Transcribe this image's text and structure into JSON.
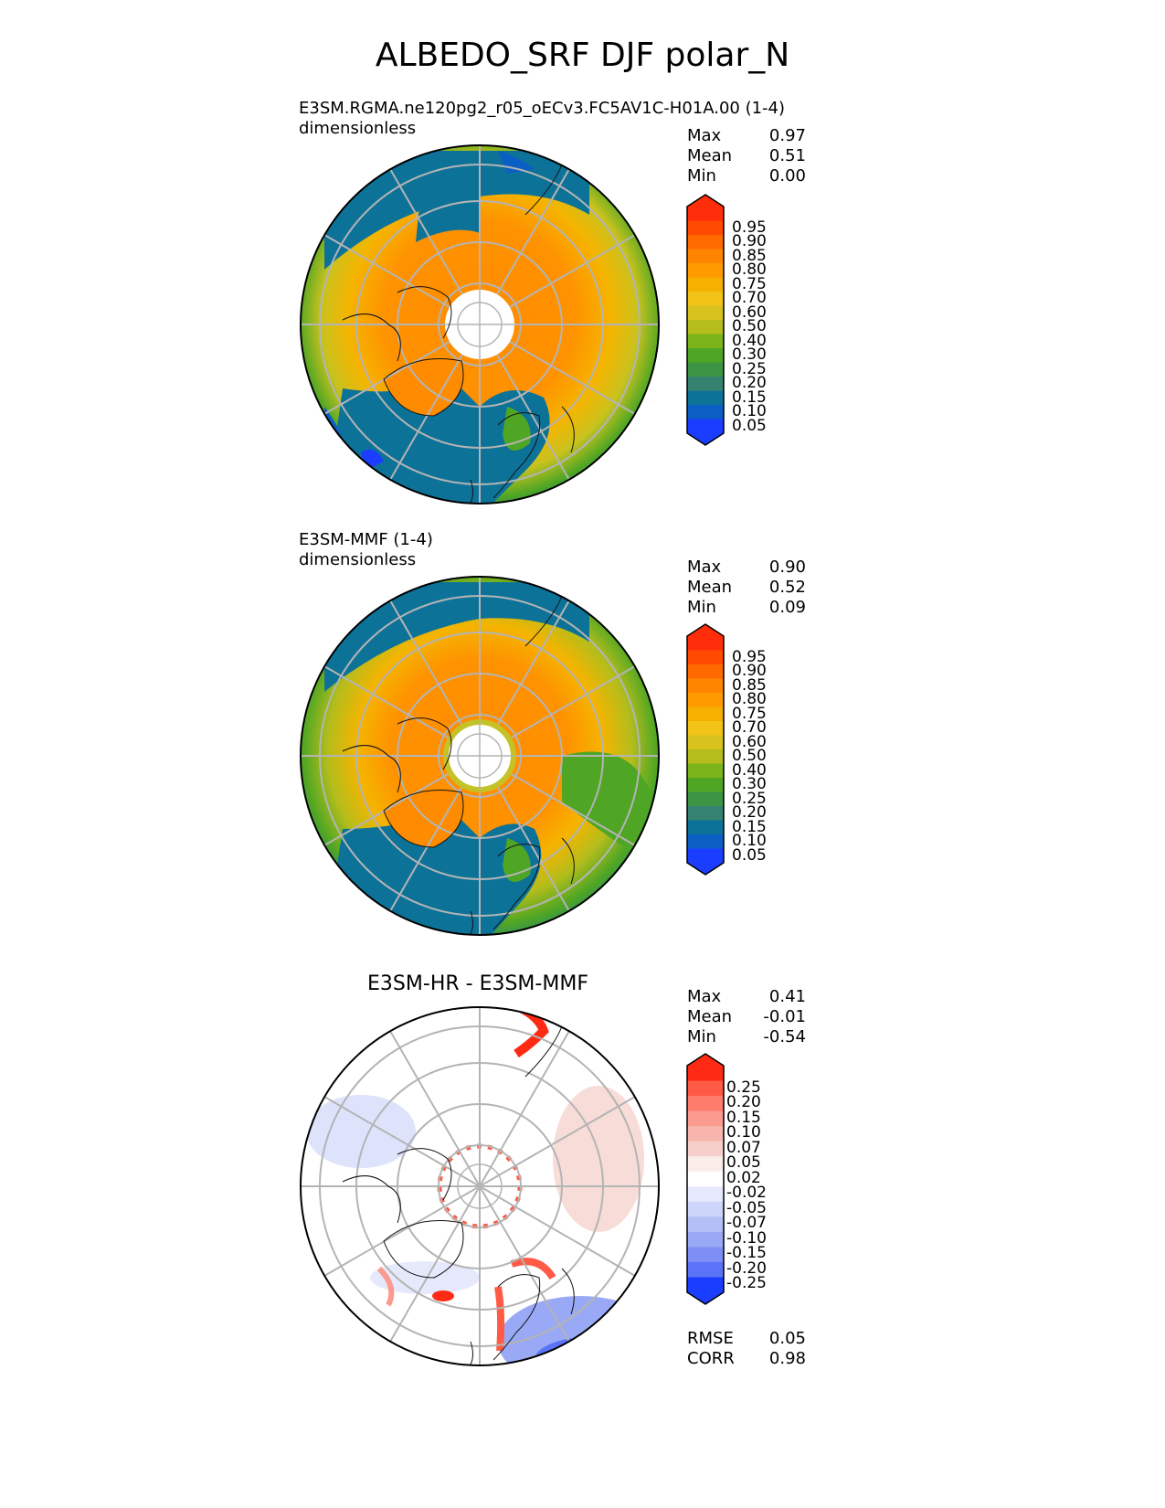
{
  "title": "ALBEDO_SRF DJF polar_N",
  "panels": [
    {
      "id": "test",
      "title_line1": "E3SM.RGMA.ne120pg2_r05_oECv3.FC5AV1C-H01A.00 (1-4)",
      "title_line2": "dimensionless",
      "stats": [
        {
          "label": "Max",
          "value": "0.97"
        },
        {
          "label": "Mean",
          "value": "0.51"
        },
        {
          "label": "Min",
          "value": "0.00"
        }
      ],
      "colorbar": {
        "labels": [
          "0.95",
          "0.90",
          "0.85",
          "0.80",
          "0.75",
          "0.70",
          "0.60",
          "0.50",
          "0.40",
          "0.30",
          "0.25",
          "0.20",
          "0.15",
          "0.10",
          "0.05"
        ],
        "colors": [
          "#ff2d0a",
          "#ff4a00",
          "#ff6a00",
          "#ff8500",
          "#ff9a00",
          "#f5b000",
          "#f2c418",
          "#d8c31e",
          "#b4bd1c",
          "#7cb41c",
          "#4fa624",
          "#3d9445",
          "#368271",
          "#0d7298",
          "#0b5fc4",
          "#1b3dff"
        ],
        "top_color": "#ff2d0a",
        "bottom_color": "#1b3dff"
      }
    },
    {
      "id": "ref",
      "title_line1": "E3SM-MMF (1-4)",
      "title_line2": "dimensionless",
      "stats": [
        {
          "label": "Max",
          "value": "0.90"
        },
        {
          "label": "Mean",
          "value": "0.52"
        },
        {
          "label": "Min",
          "value": "0.09"
        }
      ],
      "colorbar": {
        "labels": [
          "0.95",
          "0.90",
          "0.85",
          "0.80",
          "0.75",
          "0.70",
          "0.60",
          "0.50",
          "0.40",
          "0.30",
          "0.25",
          "0.20",
          "0.15",
          "0.10",
          "0.05"
        ],
        "colors": [
          "#ff2d0a",
          "#ff4a00",
          "#ff6a00",
          "#ff8500",
          "#ff9a00",
          "#f5b000",
          "#f2c418",
          "#d8c31e",
          "#b4bd1c",
          "#7cb41c",
          "#4fa624",
          "#3d9445",
          "#368271",
          "#0d7298",
          "#0b5fc4",
          "#1b3dff"
        ],
        "top_color": "#ff2d0a",
        "bottom_color": "#1b3dff"
      }
    },
    {
      "id": "diff",
      "title_center": "E3SM-HR - E3SM-MMF",
      "stats": [
        {
          "label": "Max",
          "value": "0.41"
        },
        {
          "label": "Mean",
          "value": "-0.01"
        },
        {
          "label": "Min",
          "value": "-0.54"
        }
      ],
      "colorbar": {
        "labels": [
          "0.25",
          "0.20",
          "0.15",
          "0.10",
          "0.07",
          "0.05",
          "0.02",
          "-0.02",
          "-0.05",
          "-0.07",
          "-0.10",
          "-0.15",
          "-0.20",
          "-0.25"
        ],
        "colors": [
          "#ff2a14",
          "#ff5a45",
          "#fd7c6c",
          "#fb9a8e",
          "#f8b5ad",
          "#f6cfca",
          "#faece9",
          "#ffffff",
          "#e6e9fb",
          "#cdd5fa",
          "#b3bff7",
          "#9aa9f5",
          "#7d8ff5",
          "#5a73f7",
          "#1b3dff"
        ],
        "top_color": "#ff2a14",
        "bottom_color": "#1b3dff"
      },
      "extra_stats": [
        {
          "label": "RMSE",
          "value": "0.05"
        },
        {
          "label": "CORR",
          "value": "0.98"
        }
      ]
    }
  ]
}
